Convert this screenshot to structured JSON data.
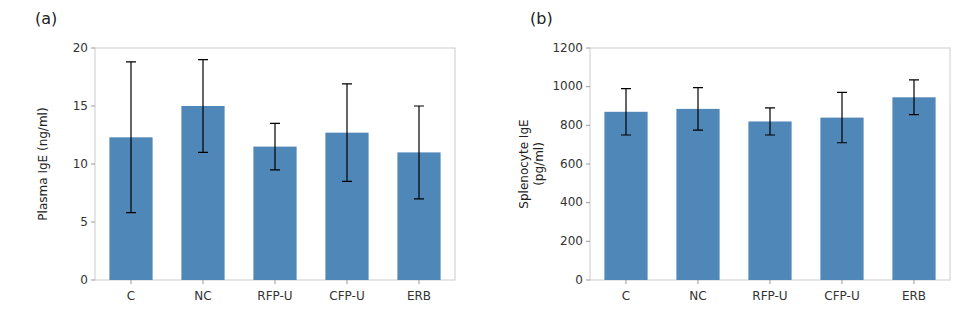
{
  "chart_data": [
    {
      "type": "bar",
      "title": "(a)",
      "ylabel": "Plasma IgE (ng/ml)",
      "categories": [
        "C",
        "NC",
        "RFP-U",
        "CFP-U",
        "ERB"
      ],
      "values": [
        12.3,
        15.0,
        11.5,
        12.7,
        11.0
      ],
      "errors": [
        6.5,
        4.0,
        2.0,
        4.2,
        4.0
      ],
      "color": "#4f87b8",
      "ylim": [
        0,
        20
      ],
      "yticks": [
        0,
        5,
        10,
        15,
        20
      ],
      "grid": false
    },
    {
      "type": "bar",
      "title": "(b)",
      "ylabel": "Splenocyte IgE\n(pg/ml)",
      "categories": [
        "C",
        "NC",
        "RFP-U",
        "CFP-U",
        "ERB"
      ],
      "values": [
        870,
        885,
        820,
        840,
        945
      ],
      "errors": [
        120,
        110,
        70,
        130,
        90
      ],
      "color": "#4f87b8",
      "ylim": [
        0,
        1200
      ],
      "yticks": [
        0,
        200,
        400,
        600,
        800,
        1000,
        1200
      ],
      "grid": false
    }
  ]
}
